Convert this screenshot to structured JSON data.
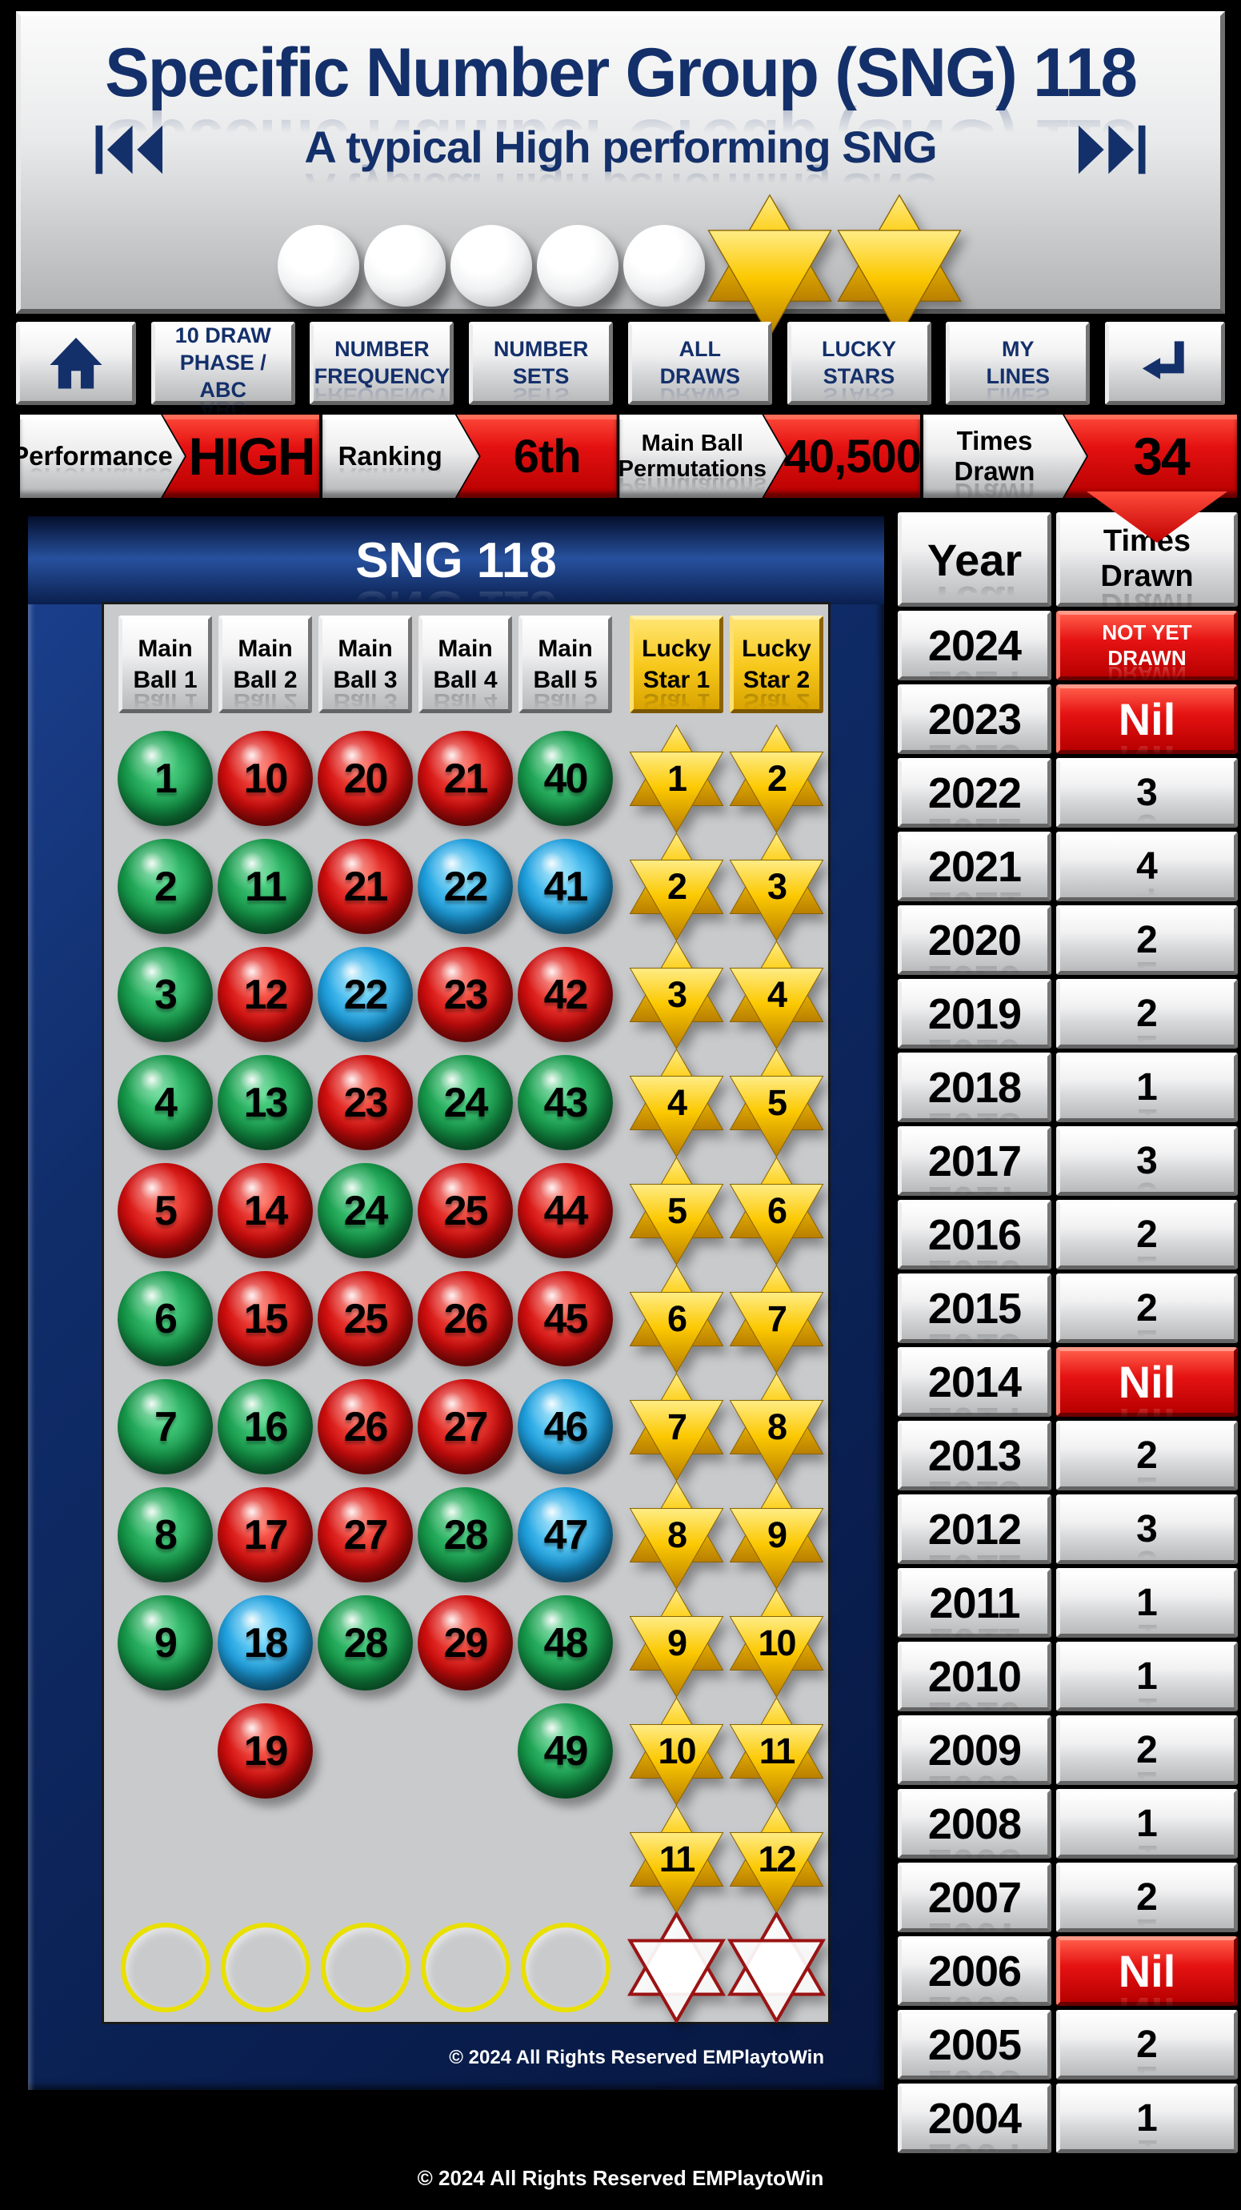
{
  "colors": {
    "navy": "#14306b",
    "accent_red": "#e01010",
    "panel_frame": "#0e2a63",
    "panel_bg": "#c9cacc",
    "gold": "#f7c81c",
    "ball_green": "#169b4b",
    "ball_red": "#d40d0d",
    "ball_blue": "#1fa3e3"
  },
  "header": {
    "title": "Specific Number Group (SNG) 118",
    "subtitle": "A typical High performing SNG",
    "white_ball_count": 5,
    "gold_star_count": 2
  },
  "nav": {
    "items": [
      {
        "line1": "10 DRAW",
        "line2": "PHASE / ABC"
      },
      {
        "line1": "NUMBER",
        "line2": "FREQUENCY"
      },
      {
        "line1": "NUMBER",
        "line2": "SETS"
      },
      {
        "line1": "ALL",
        "line2": "DRAWS"
      },
      {
        "line1": "LUCKY",
        "line2": "STARS"
      },
      {
        "line1": "MY",
        "line2": "LINES"
      }
    ]
  },
  "status": {
    "performance": {
      "label": "Performance",
      "value": "HIGH"
    },
    "ranking": {
      "label": "Ranking",
      "value": "6th"
    },
    "permutations": {
      "label1": "Main Ball",
      "label2": "Permutations",
      "value": "40,500"
    },
    "times_drawn": {
      "label": "Times Drawn",
      "value": "34"
    }
  },
  "panel": {
    "title": "SNG 118",
    "columns": [
      {
        "line1": "Main",
        "line2": "Ball 1"
      },
      {
        "line1": "Main",
        "line2": "Ball 2"
      },
      {
        "line1": "Main",
        "line2": "Ball 3"
      },
      {
        "line1": "Main",
        "line2": "Ball 4"
      },
      {
        "line1": "Main",
        "line2": "Ball 5"
      },
      {
        "line1": "Lucky",
        "line2": "Star 1"
      },
      {
        "line1": "Lucky",
        "line2": "Star 2"
      }
    ],
    "rows": [
      [
        {
          "t": "ball",
          "n": 1,
          "c": "green"
        },
        {
          "t": "ball",
          "n": 10,
          "c": "red"
        },
        {
          "t": "ball",
          "n": 20,
          "c": "red"
        },
        {
          "t": "ball",
          "n": 21,
          "c": "red"
        },
        {
          "t": "ball",
          "n": 40,
          "c": "green"
        },
        {
          "t": "star",
          "n": 1
        },
        {
          "t": "star",
          "n": 2
        }
      ],
      [
        {
          "t": "ball",
          "n": 2,
          "c": "green"
        },
        {
          "t": "ball",
          "n": 11,
          "c": "green"
        },
        {
          "t": "ball",
          "n": 21,
          "c": "red"
        },
        {
          "t": "ball",
          "n": 22,
          "c": "blue"
        },
        {
          "t": "ball",
          "n": 41,
          "c": "blue"
        },
        {
          "t": "star",
          "n": 2
        },
        {
          "t": "star",
          "n": 3
        }
      ],
      [
        {
          "t": "ball",
          "n": 3,
          "c": "green"
        },
        {
          "t": "ball",
          "n": 12,
          "c": "red"
        },
        {
          "t": "ball",
          "n": 22,
          "c": "blue"
        },
        {
          "t": "ball",
          "n": 23,
          "c": "red"
        },
        {
          "t": "ball",
          "n": 42,
          "c": "red"
        },
        {
          "t": "star",
          "n": 3
        },
        {
          "t": "star",
          "n": 4
        }
      ],
      [
        {
          "t": "ball",
          "n": 4,
          "c": "green"
        },
        {
          "t": "ball",
          "n": 13,
          "c": "green"
        },
        {
          "t": "ball",
          "n": 23,
          "c": "red"
        },
        {
          "t": "ball",
          "n": 24,
          "c": "green"
        },
        {
          "t": "ball",
          "n": 43,
          "c": "green"
        },
        {
          "t": "star",
          "n": 4
        },
        {
          "t": "star",
          "n": 5
        }
      ],
      [
        {
          "t": "ball",
          "n": 5,
          "c": "red"
        },
        {
          "t": "ball",
          "n": 14,
          "c": "red"
        },
        {
          "t": "ball",
          "n": 24,
          "c": "green"
        },
        {
          "t": "ball",
          "n": 25,
          "c": "red"
        },
        {
          "t": "ball",
          "n": 44,
          "c": "red"
        },
        {
          "t": "star",
          "n": 5
        },
        {
          "t": "star",
          "n": 6
        }
      ],
      [
        {
          "t": "ball",
          "n": 6,
          "c": "green"
        },
        {
          "t": "ball",
          "n": 15,
          "c": "red"
        },
        {
          "t": "ball",
          "n": 25,
          "c": "red"
        },
        {
          "t": "ball",
          "n": 26,
          "c": "red"
        },
        {
          "t": "ball",
          "n": 45,
          "c": "red"
        },
        {
          "t": "star",
          "n": 6
        },
        {
          "t": "star",
          "n": 7
        }
      ],
      [
        {
          "t": "ball",
          "n": 7,
          "c": "green"
        },
        {
          "t": "ball",
          "n": 16,
          "c": "green"
        },
        {
          "t": "ball",
          "n": 26,
          "c": "red"
        },
        {
          "t": "ball",
          "n": 27,
          "c": "red"
        },
        {
          "t": "ball",
          "n": 46,
          "c": "blue"
        },
        {
          "t": "star",
          "n": 7
        },
        {
          "t": "star",
          "n": 8
        }
      ],
      [
        {
          "t": "ball",
          "n": 8,
          "c": "green"
        },
        {
          "t": "ball",
          "n": 17,
          "c": "red"
        },
        {
          "t": "ball",
          "n": 27,
          "c": "red"
        },
        {
          "t": "ball",
          "n": 28,
          "c": "green"
        },
        {
          "t": "ball",
          "n": 47,
          "c": "blue"
        },
        {
          "t": "star",
          "n": 8
        },
        {
          "t": "star",
          "n": 9
        }
      ],
      [
        {
          "t": "ball",
          "n": 9,
          "c": "green"
        },
        {
          "t": "ball",
          "n": 18,
          "c": "blue"
        },
        {
          "t": "ball",
          "n": 28,
          "c": "green"
        },
        {
          "t": "ball",
          "n": 29,
          "c": "red"
        },
        {
          "t": "ball",
          "n": 48,
          "c": "green"
        },
        {
          "t": "star",
          "n": 9
        },
        {
          "t": "star",
          "n": 10
        }
      ],
      [
        {
          "t": "blank"
        },
        {
          "t": "ball",
          "n": 19,
          "c": "red"
        },
        {
          "t": "blank"
        },
        {
          "t": "blank"
        },
        {
          "t": "ball",
          "n": 49,
          "c": "green"
        },
        {
          "t": "star",
          "n": 10
        },
        {
          "t": "star",
          "n": 11
        }
      ],
      [
        {
          "t": "blank"
        },
        {
          "t": "blank"
        },
        {
          "t": "blank"
        },
        {
          "t": "blank"
        },
        {
          "t": "blank"
        },
        {
          "t": "star",
          "n": 11
        },
        {
          "t": "star",
          "n": 12
        }
      ],
      [
        {
          "t": "circle"
        },
        {
          "t": "circle"
        },
        {
          "t": "circle"
        },
        {
          "t": "circle"
        },
        {
          "t": "circle"
        },
        {
          "t": "estar"
        },
        {
          "t": "estar"
        }
      ]
    ],
    "copyright": "© 2024 All Rights Reserved EMPlaytoWin"
  },
  "year_table": {
    "header_year": "Year",
    "header_times_line1": "Times",
    "header_times_line2": "Drawn",
    "rows": [
      {
        "year": "2024",
        "value": "NOT YET DRAWN",
        "red": true,
        "small": true
      },
      {
        "year": "2023",
        "value": "Nil",
        "red": true
      },
      {
        "year": "2022",
        "value": "3"
      },
      {
        "year": "2021",
        "value": "4"
      },
      {
        "year": "2020",
        "value": "2"
      },
      {
        "year": "2019",
        "value": "2"
      },
      {
        "year": "2018",
        "value": "1"
      },
      {
        "year": "2017",
        "value": "3"
      },
      {
        "year": "2016",
        "value": "2"
      },
      {
        "year": "2015",
        "value": "2"
      },
      {
        "year": "2014",
        "value": "Nil",
        "red": true
      },
      {
        "year": "2013",
        "value": "2"
      },
      {
        "year": "2012",
        "value": "3"
      },
      {
        "year": "2011",
        "value": "1"
      },
      {
        "year": "2010",
        "value": "1"
      },
      {
        "year": "2009",
        "value": "2"
      },
      {
        "year": "2008",
        "value": "1"
      },
      {
        "year": "2007",
        "value": "2"
      },
      {
        "year": "2006",
        "value": "Nil",
        "red": true
      },
      {
        "year": "2005",
        "value": "2"
      },
      {
        "year": "2004",
        "value": "1"
      }
    ]
  },
  "footer": {
    "copyright": "© 2024 All Rights Reserved EMPlaytoWin"
  }
}
